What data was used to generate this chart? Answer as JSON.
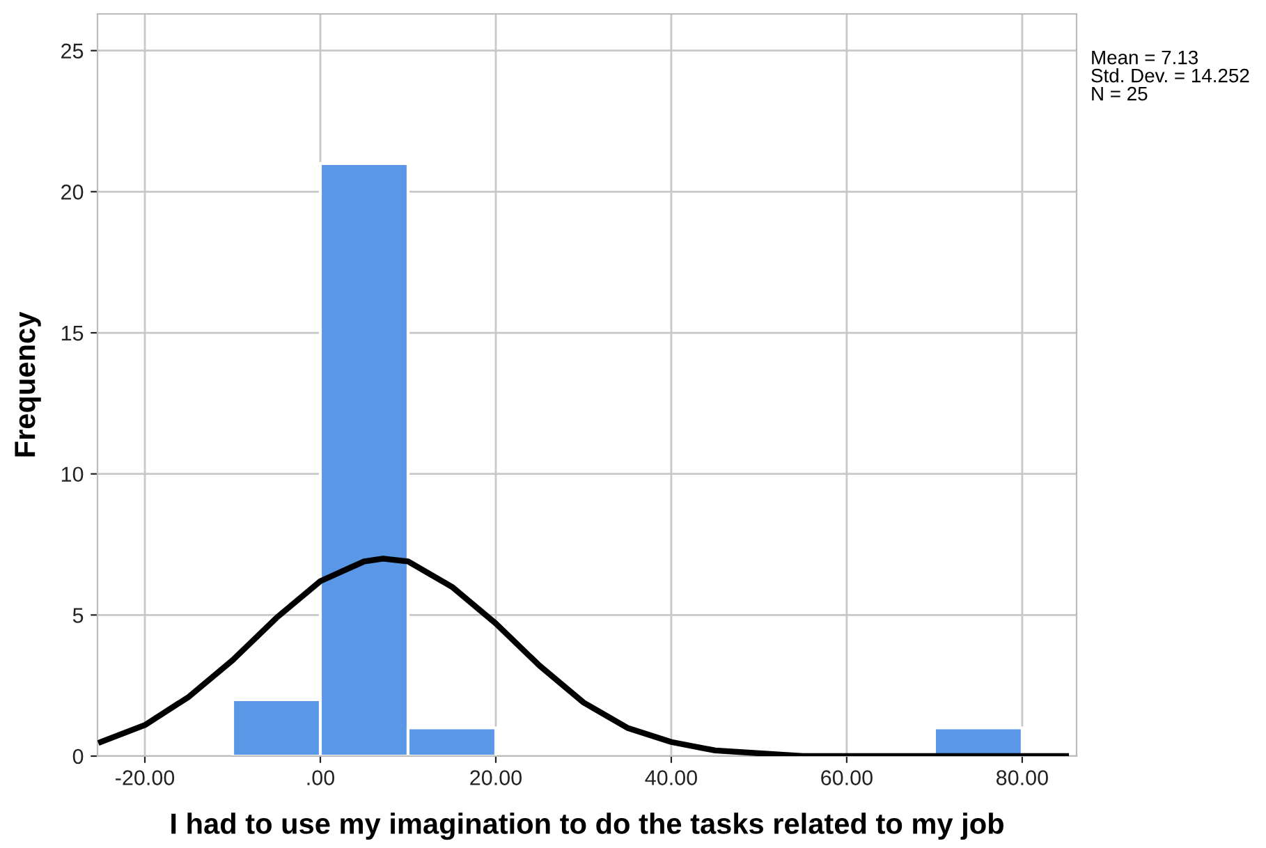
{
  "chart_data": {
    "type": "histogram",
    "xlabel": "I had to use my imagination to do the tasks related to my job",
    "ylabel": "Frequency",
    "series": [
      {
        "bins": [
          -10,
          0,
          10,
          20,
          30,
          40,
          50,
          60,
          70,
          80
        ],
        "values": [
          2,
          21,
          1,
          0,
          0,
          0,
          0,
          0,
          1
        ],
        "color": "#5a97e6"
      },
      {
        "type": "line",
        "color": "#000000",
        "x": [
          -25,
          -20,
          -15,
          -10,
          -5,
          0,
          5,
          7.13,
          10,
          15,
          20,
          25,
          30,
          35,
          40,
          45,
          50,
          55,
          60,
          70,
          85
        ],
        "values": [
          0.5,
          1.1,
          2.1,
          3.4,
          4.9,
          6.2,
          6.9,
          7.0,
          6.9,
          6.0,
          4.7,
          3.2,
          1.9,
          1.0,
          0.5,
          0.2,
          0.1,
          0.0,
          0.0,
          0.0,
          0.0
        ]
      }
    ],
    "xlim": [
      -25.4,
      86.2
    ],
    "ylim": [
      0,
      26.3
    ],
    "xticks": [
      {
        "value": -20,
        "label": "-20.00"
      },
      {
        "value": 0,
        "label": ".00"
      },
      {
        "value": 20,
        "label": "20.00"
      },
      {
        "value": 40,
        "label": "40.00"
      },
      {
        "value": 60,
        "label": "60.00"
      },
      {
        "value": 80,
        "label": "80.00"
      }
    ],
    "yticks": [
      0,
      5,
      10,
      15,
      20,
      25
    ],
    "grid": true,
    "annotations": [
      "Mean = 7.13",
      "Std. Dev. = 14.252",
      "N = 25"
    ]
  }
}
